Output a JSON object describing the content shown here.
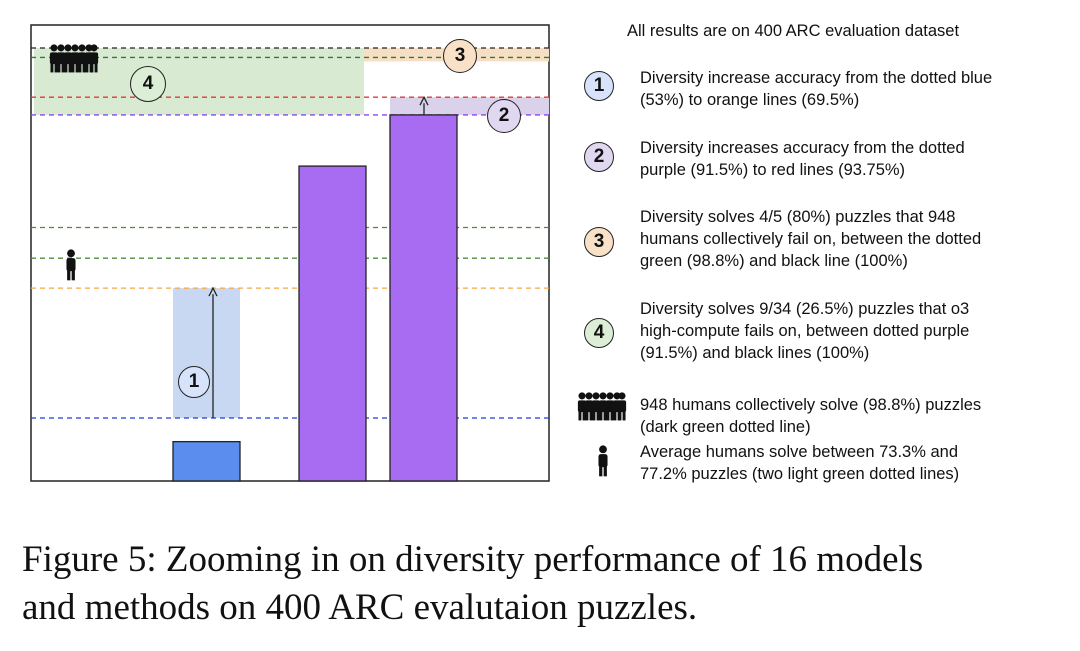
{
  "chart_data": {
    "type": "bar",
    "title": "",
    "xlabel": "",
    "ylabel": "",
    "ylim": [
      45,
      100
    ],
    "values": [
      50,
      85,
      91.5
    ],
    "reference_lines": [
      {
        "value": 100,
        "color": "#222222",
        "label": "black line (100%)"
      },
      {
        "value": 98.8,
        "color": "#2f7d32",
        "label": "dark green dotted line (98.8%)"
      },
      {
        "value": 93.75,
        "color": "#e53935",
        "label": "red line (93.75%)"
      },
      {
        "value": 91.5,
        "color": "#8e44ec",
        "label": "purple line (91.5%)"
      },
      {
        "value": 77.2,
        "color": "#4e8c3a",
        "label": "light green line (77.2%)"
      },
      {
        "value": 73.3,
        "color": "#4e8c3a",
        "label": "light green line (73.3%)"
      },
      {
        "value": 69.5,
        "color": "#f5a742",
        "label": "orange line (69.5%)"
      },
      {
        "value": 53,
        "color": "#1f3fd1",
        "label": "blue line (53%)"
      }
    ],
    "badges": [
      "1",
      "2",
      "3",
      "4"
    ]
  },
  "colors": {
    "blue_bar": "#5b8def",
    "purple_bar": "#a86cf2",
    "blue_band": "#c9d8f2",
    "purple_band": "#d9d2ea",
    "orange_band": "#f6dfc4",
    "green_band": "#d8ead2",
    "badge_1": "#d7e3fb",
    "badge_2": "#e0d8f0",
    "badge_3": "#f9e1c8",
    "badge_4": "#dcefd6"
  },
  "icons": {
    "group": "group-of-humans-icon",
    "person": "single-human-icon"
  },
  "legend": {
    "header": "All results are on 400 ARC evaluation dataset",
    "items": [
      {
        "badge": "1",
        "lines": [
          "Diversity increase accuracy from the dotted blue",
          "(53%) to orange lines (69.5%)"
        ]
      },
      {
        "badge": "2",
        "lines": [
          "Diversity increases accuracy from the dotted",
          "purple (91.5%) to red lines (93.75%)"
        ]
      },
      {
        "badge": "3",
        "lines": [
          "Diversity solves 4/5 (80%) puzzles that 948",
          "humans collectively fail on, between the dotted",
          "green (98.8%) and black line (100%)"
        ]
      },
      {
        "badge": "4",
        "lines": [
          "Diversity solves 9/34 (26.5%) puzzles that o3",
          "high-compute fails on, between dotted purple",
          "(91.5%) and black lines (100%)"
        ]
      },
      {
        "icon": "group",
        "lines": [
          "948 humans collectively solve (98.8%) puzzles",
          "(dark green dotted line)"
        ]
      },
      {
        "icon": "person",
        "lines": [
          "Average humans solve between 73.3% and",
          "77.2% puzzles (two light green dotted lines)"
        ]
      }
    ]
  },
  "caption": {
    "line1": "Figure 5: Zooming in on diversity performance of 16 models",
    "line2": "and methods on 400 ARC evalutaion puzzles."
  }
}
